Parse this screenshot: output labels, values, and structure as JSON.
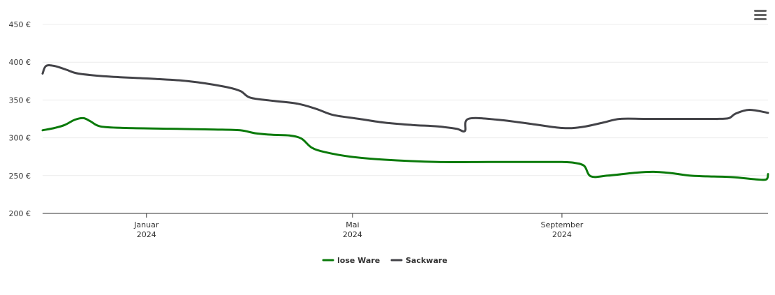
{
  "colors": {
    "lose": "#0a7a0a",
    "sack": "#434348",
    "grid": "#ececec",
    "axis": "#333333"
  },
  "menu": {
    "icon": "hamburger-menu-icon"
  },
  "chart_data": {
    "type": "line",
    "ylim": [
      200,
      450
    ],
    "y_ticks": [
      {
        "value": 200,
        "label": "200 €"
      },
      {
        "value": 250,
        "label": "250 €"
      },
      {
        "value": 300,
        "label": "300 €"
      },
      {
        "value": 350,
        "label": "350 €"
      },
      {
        "value": 400,
        "label": "400 €"
      },
      {
        "value": 450,
        "label": "450 €"
      }
    ],
    "x_range": [
      "2023-11-01",
      "2024-12-31"
    ],
    "x_ticks": [
      {
        "date": "2024-01-01",
        "month": "Januar",
        "year": "2024"
      },
      {
        "date": "2024-05-01",
        "month": "Mai",
        "year": "2024"
      },
      {
        "date": "2024-09-01",
        "month": "September",
        "year": "2024"
      }
    ],
    "legend": {
      "position": "bottom-center"
    },
    "series": [
      {
        "name": "lose Ware",
        "color": "#0a7a0a",
        "points": [
          [
            "2023-11-01",
            310
          ],
          [
            "2023-11-08",
            313
          ],
          [
            "2023-11-14",
            317
          ],
          [
            "2023-11-20",
            324
          ],
          [
            "2023-11-25",
            326
          ],
          [
            "2023-11-29",
            322
          ],
          [
            "2023-12-05",
            315
          ],
          [
            "2023-12-20",
            313
          ],
          [
            "2024-01-15",
            312
          ],
          [
            "2024-02-10",
            311
          ],
          [
            "2024-02-25",
            310
          ],
          [
            "2024-03-05",
            306
          ],
          [
            "2024-03-15",
            304
          ],
          [
            "2024-03-25",
            303
          ],
          [
            "2024-04-01",
            299
          ],
          [
            "2024-04-07",
            287
          ],
          [
            "2024-04-15",
            281
          ],
          [
            "2024-04-30",
            275
          ],
          [
            "2024-05-20",
            271
          ],
          [
            "2024-06-20",
            268
          ],
          [
            "2024-07-20",
            268
          ],
          [
            "2024-08-20",
            268
          ],
          [
            "2024-09-01",
            268
          ],
          [
            "2024-09-08",
            267
          ],
          [
            "2024-09-14",
            263
          ],
          [
            "2024-09-18",
            249
          ],
          [
            "2024-09-28",
            250
          ],
          [
            "2024-10-15",
            254
          ],
          [
            "2024-10-25",
            255
          ],
          [
            "2024-11-05",
            253
          ],
          [
            "2024-11-15",
            250
          ],
          [
            "2024-11-25",
            249
          ],
          [
            "2024-12-10",
            248
          ],
          [
            "2024-12-24",
            245
          ],
          [
            "2024-12-30",
            245
          ],
          [
            "2024-12-31",
            252
          ]
        ]
      },
      {
        "name": "Sackware",
        "color": "#434348",
        "points": [
          [
            "2023-11-01",
            385
          ],
          [
            "2023-11-03",
            395
          ],
          [
            "2023-11-08",
            395
          ],
          [
            "2023-11-15",
            390
          ],
          [
            "2023-11-22",
            385
          ],
          [
            "2023-12-10",
            381
          ],
          [
            "2024-01-05",
            378
          ],
          [
            "2024-01-25",
            375
          ],
          [
            "2024-02-15",
            368
          ],
          [
            "2024-02-25",
            362
          ],
          [
            "2024-03-02",
            353
          ],
          [
            "2024-03-15",
            349
          ],
          [
            "2024-03-30",
            345
          ],
          [
            "2024-04-10",
            338
          ],
          [
            "2024-04-20",
            330
          ],
          [
            "2024-05-05",
            325
          ],
          [
            "2024-05-20",
            320
          ],
          [
            "2024-06-05",
            317
          ],
          [
            "2024-06-20",
            315
          ],
          [
            "2024-07-01",
            312
          ],
          [
            "2024-07-06",
            309
          ],
          [
            "2024-07-08",
            325
          ],
          [
            "2024-07-25",
            324
          ],
          [
            "2024-08-15",
            318
          ],
          [
            "2024-09-01",
            313
          ],
          [
            "2024-09-12",
            314
          ],
          [
            "2024-09-25",
            320
          ],
          [
            "2024-10-05",
            325
          ],
          [
            "2024-10-20",
            325
          ],
          [
            "2024-11-10",
            325
          ],
          [
            "2024-11-30",
            325
          ],
          [
            "2024-12-01",
            325
          ],
          [
            "2024-12-08",
            326
          ],
          [
            "2024-12-12",
            332
          ],
          [
            "2024-12-20",
            337
          ],
          [
            "2024-12-31",
            333
          ]
        ]
      }
    ]
  }
}
